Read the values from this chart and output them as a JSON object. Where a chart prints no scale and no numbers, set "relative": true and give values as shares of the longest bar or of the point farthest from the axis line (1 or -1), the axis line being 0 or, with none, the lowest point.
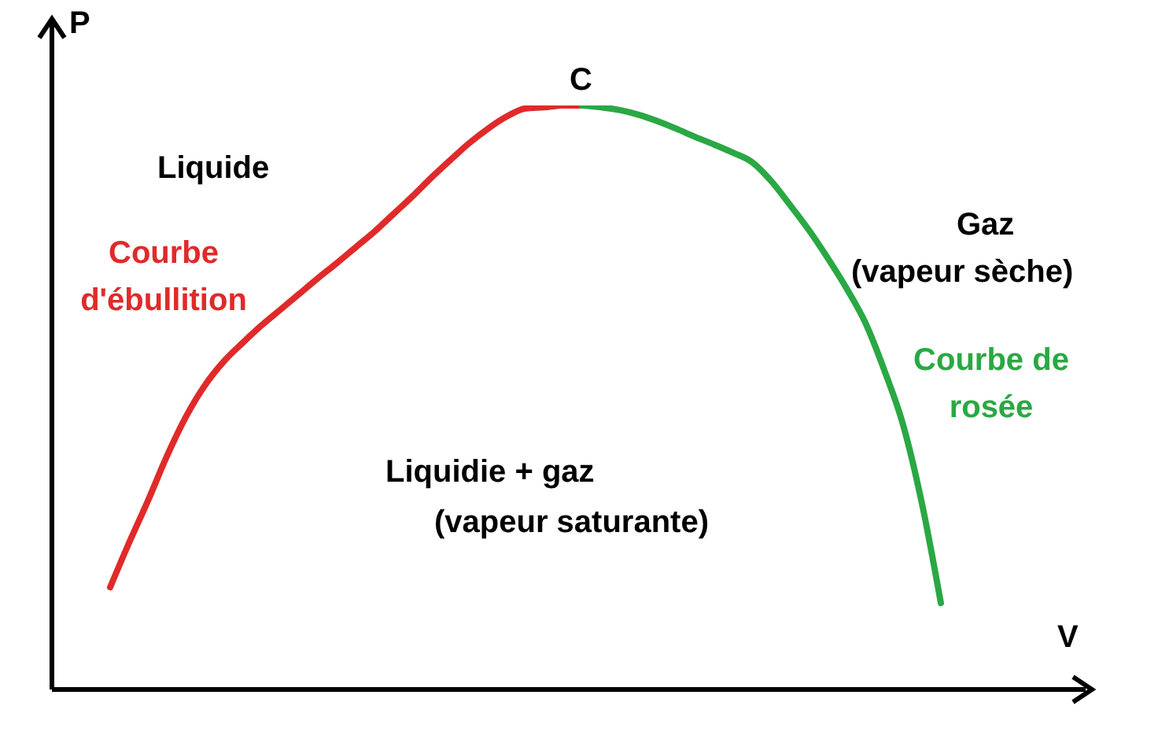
{
  "chart_data": {
    "type": "line",
    "relative": true,
    "xlabel": "V",
    "ylabel": "P",
    "legend": false,
    "categories": [
      null,
      null,
      null,
      null,
      null,
      null,
      null,
      null,
      null,
      null,
      null,
      null,
      null,
      null,
      null,
      null,
      null,
      null,
      null,
      null,
      null,
      null,
      null,
      null,
      null,
      null,
      null,
      null,
      null,
      null,
      null,
      null,
      null,
      null,
      null,
      null,
      null,
      null,
      null,
      null,
      null,
      null,
      null,
      null,
      null
    ],
    "series": [
      {
        "name": "Courbe d'ébullition",
        "color": "#e02a2a",
        "values": [
          0.175,
          0.251,
          0.323,
          0.399,
          0.466,
          0.52,
          0.561,
          0.593,
          0.623,
          0.65,
          0.677,
          0.704,
          0.73,
          0.757,
          0.784,
          0.814,
          0.844,
          0.876,
          0.906,
          0.935,
          0.96,
          0.981,
          0.995,
          0.997,
          1,
          1,
          null,
          null,
          null,
          null,
          null,
          null,
          null,
          null,
          null,
          null,
          null,
          null,
          null,
          null,
          null,
          null,
          null,
          null,
          null
        ]
      },
      {
        "name": "Courbe de rosée",
        "color": "#2aa844",
        "values": [
          null,
          null,
          null,
          null,
          null,
          null,
          null,
          null,
          null,
          null,
          null,
          null,
          null,
          null,
          null,
          null,
          null,
          null,
          null,
          null,
          null,
          null,
          null,
          null,
          null,
          1,
          0.997,
          0.992,
          0.984,
          0.973,
          0.96,
          0.946,
          0.933,
          0.919,
          0.903,
          0.871,
          0.83,
          0.787,
          0.739,
          0.687,
          0.628,
          0.547,
          0.453,
          0.318,
          0.148
        ]
      }
    ],
    "annotations": [
      "C",
      "Liquide",
      "Gaz",
      "(vapeur sèche)",
      "Liquidie + gaz",
      "(vapeur saturante)"
    ]
  }
}
